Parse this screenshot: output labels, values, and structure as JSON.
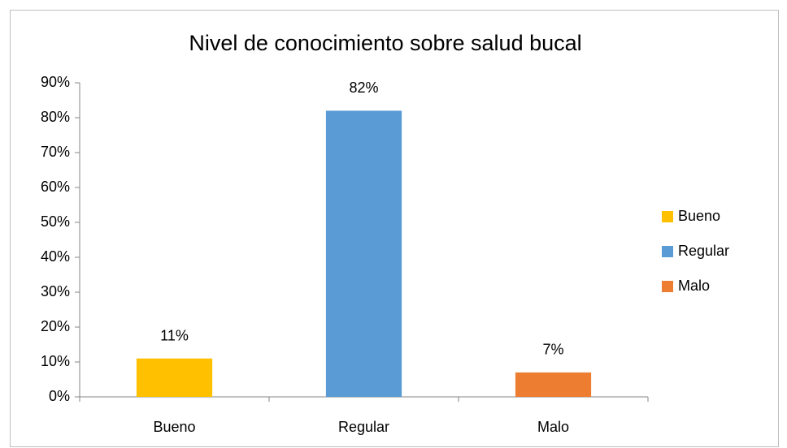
{
  "chart_data": {
    "type": "bar",
    "title": "Nivel de conocimiento sobre salud bucal",
    "categories": [
      "Bueno",
      "Regular",
      "Malo"
    ],
    "values": [
      11,
      82,
      7
    ],
    "value_labels": [
      "11%",
      "82%",
      "7%"
    ],
    "colors": [
      "#ffc000",
      "#5b9bd5",
      "#ed7d31"
    ],
    "ylim": [
      0,
      90
    ],
    "yticks": [
      {
        "value": 0,
        "label": "0%"
      },
      {
        "value": 10,
        "label": "10%"
      },
      {
        "value": 20,
        "label": "20%"
      },
      {
        "value": 30,
        "label": "30%"
      },
      {
        "value": 40,
        "label": "40%"
      },
      {
        "value": 50,
        "label": "50%"
      },
      {
        "value": 60,
        "label": "60%"
      },
      {
        "value": 70,
        "label": "70%"
      },
      {
        "value": 80,
        "label": "80%"
      },
      {
        "value": 90,
        "label": "90%"
      }
    ],
    "grid": false,
    "legend": "right"
  }
}
